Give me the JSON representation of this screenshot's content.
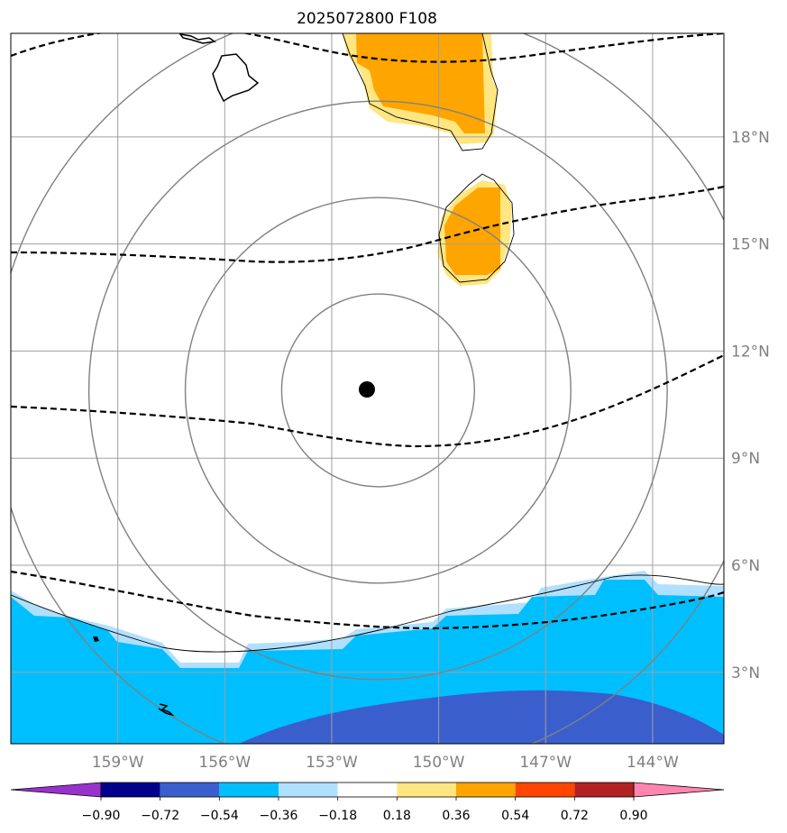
{
  "chart_data": {
    "type": "heatmap",
    "title": "2025072800 F108",
    "x_ticks": [
      "159°W",
      "156°W",
      "153°W",
      "150°W",
      "147°W",
      "144°W"
    ],
    "y_ticks": [
      "3°N",
      "6°N",
      "9°N",
      "12°N",
      "15°N",
      "18°N"
    ],
    "x_values": [
      -159,
      -156,
      -153,
      -150,
      -147,
      -144
    ],
    "y_values": [
      3,
      6,
      9,
      12,
      15,
      18
    ],
    "xlim": [
      -162,
      -142
    ],
    "ylim": [
      1.0,
      20.9
    ],
    "center_marker": {
      "lon": -151.7,
      "lat": 10.9
    },
    "range_rings_deg": [
      2.7,
      5.4,
      8.1,
      10.8
    ],
    "colorbar": {
      "levels": [
        "−0.90",
        "−0.72",
        "−0.54",
        "−0.36",
        "−0.18",
        "0.18",
        "0.36",
        "0.54",
        "0.72",
        "0.90"
      ],
      "colors": [
        "#9932cc",
        "#00008b",
        "#3a5fcd",
        "#00bfff",
        "#b0e0ff",
        "#ffffff",
        "#ffe680",
        "#ffa500",
        "#ff4500",
        "#b22222",
        "#ff85b0"
      ],
      "extend": "both"
    },
    "grid": true
  },
  "colors": {
    "axes": "#000000",
    "grid": "#a0a0a0",
    "rings": "#808080",
    "contour": "#000000"
  }
}
